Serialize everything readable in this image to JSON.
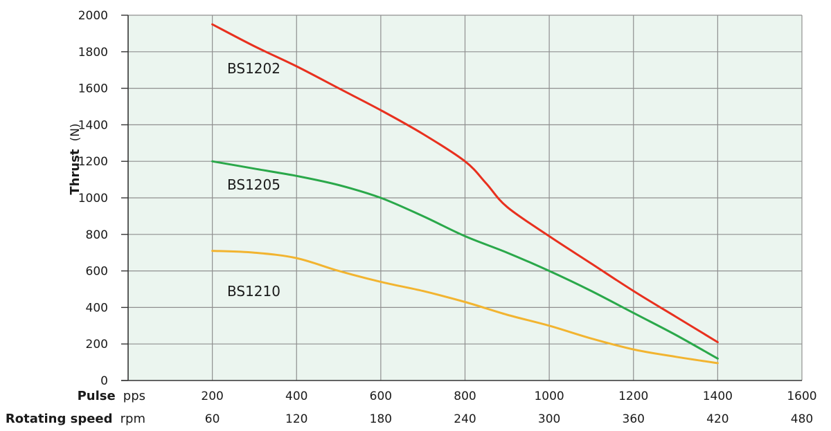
{
  "chart_data": {
    "type": "line",
    "ylabel": {
      "main": "Thrust",
      "unit": "(N)"
    },
    "x_axes": [
      {
        "name": "Pulse",
        "unit": "pps",
        "ticks": [
          200,
          400,
          600,
          800,
          1000,
          1200,
          1400,
          1600
        ]
      },
      {
        "name": "Rotating speed",
        "unit": "rpm",
        "ticks": [
          60,
          120,
          180,
          240,
          300,
          360,
          420,
          480
        ]
      }
    ],
    "y_ticks": [
      0,
      200,
      400,
      600,
      800,
      1000,
      1200,
      1400,
      1600,
      1800,
      2000
    ],
    "xlim": [
      0,
      1600
    ],
    "ylim": [
      0,
      2000
    ],
    "grid": true,
    "series": [
      {
        "name": "BS1202",
        "color": "#e8301e",
        "x": [
          200,
          300,
          400,
          500,
          600,
          700,
          800,
          850,
          900,
          1000,
          1100,
          1200,
          1300,
          1400
        ],
        "y": [
          1950,
          1830,
          1720,
          1600,
          1480,
          1350,
          1200,
          1080,
          950,
          790,
          640,
          490,
          350,
          210
        ]
      },
      {
        "name": "BS1205",
        "color": "#2aa84a",
        "x": [
          200,
          300,
          400,
          500,
          600,
          700,
          800,
          900,
          1000,
          1100,
          1200,
          1300,
          1400
        ],
        "y": [
          1200,
          1160,
          1120,
          1070,
          1000,
          900,
          790,
          700,
          600,
          490,
          370,
          250,
          120
        ]
      },
      {
        "name": "BS1210",
        "color": "#f2b430",
        "x": [
          200,
          300,
          400,
          500,
          600,
          700,
          800,
          900,
          1000,
          1100,
          1200,
          1300,
          1400
        ],
        "y": [
          710,
          700,
          670,
          600,
          540,
          490,
          430,
          360,
          300,
          230,
          170,
          130,
          95
        ]
      }
    ]
  }
}
